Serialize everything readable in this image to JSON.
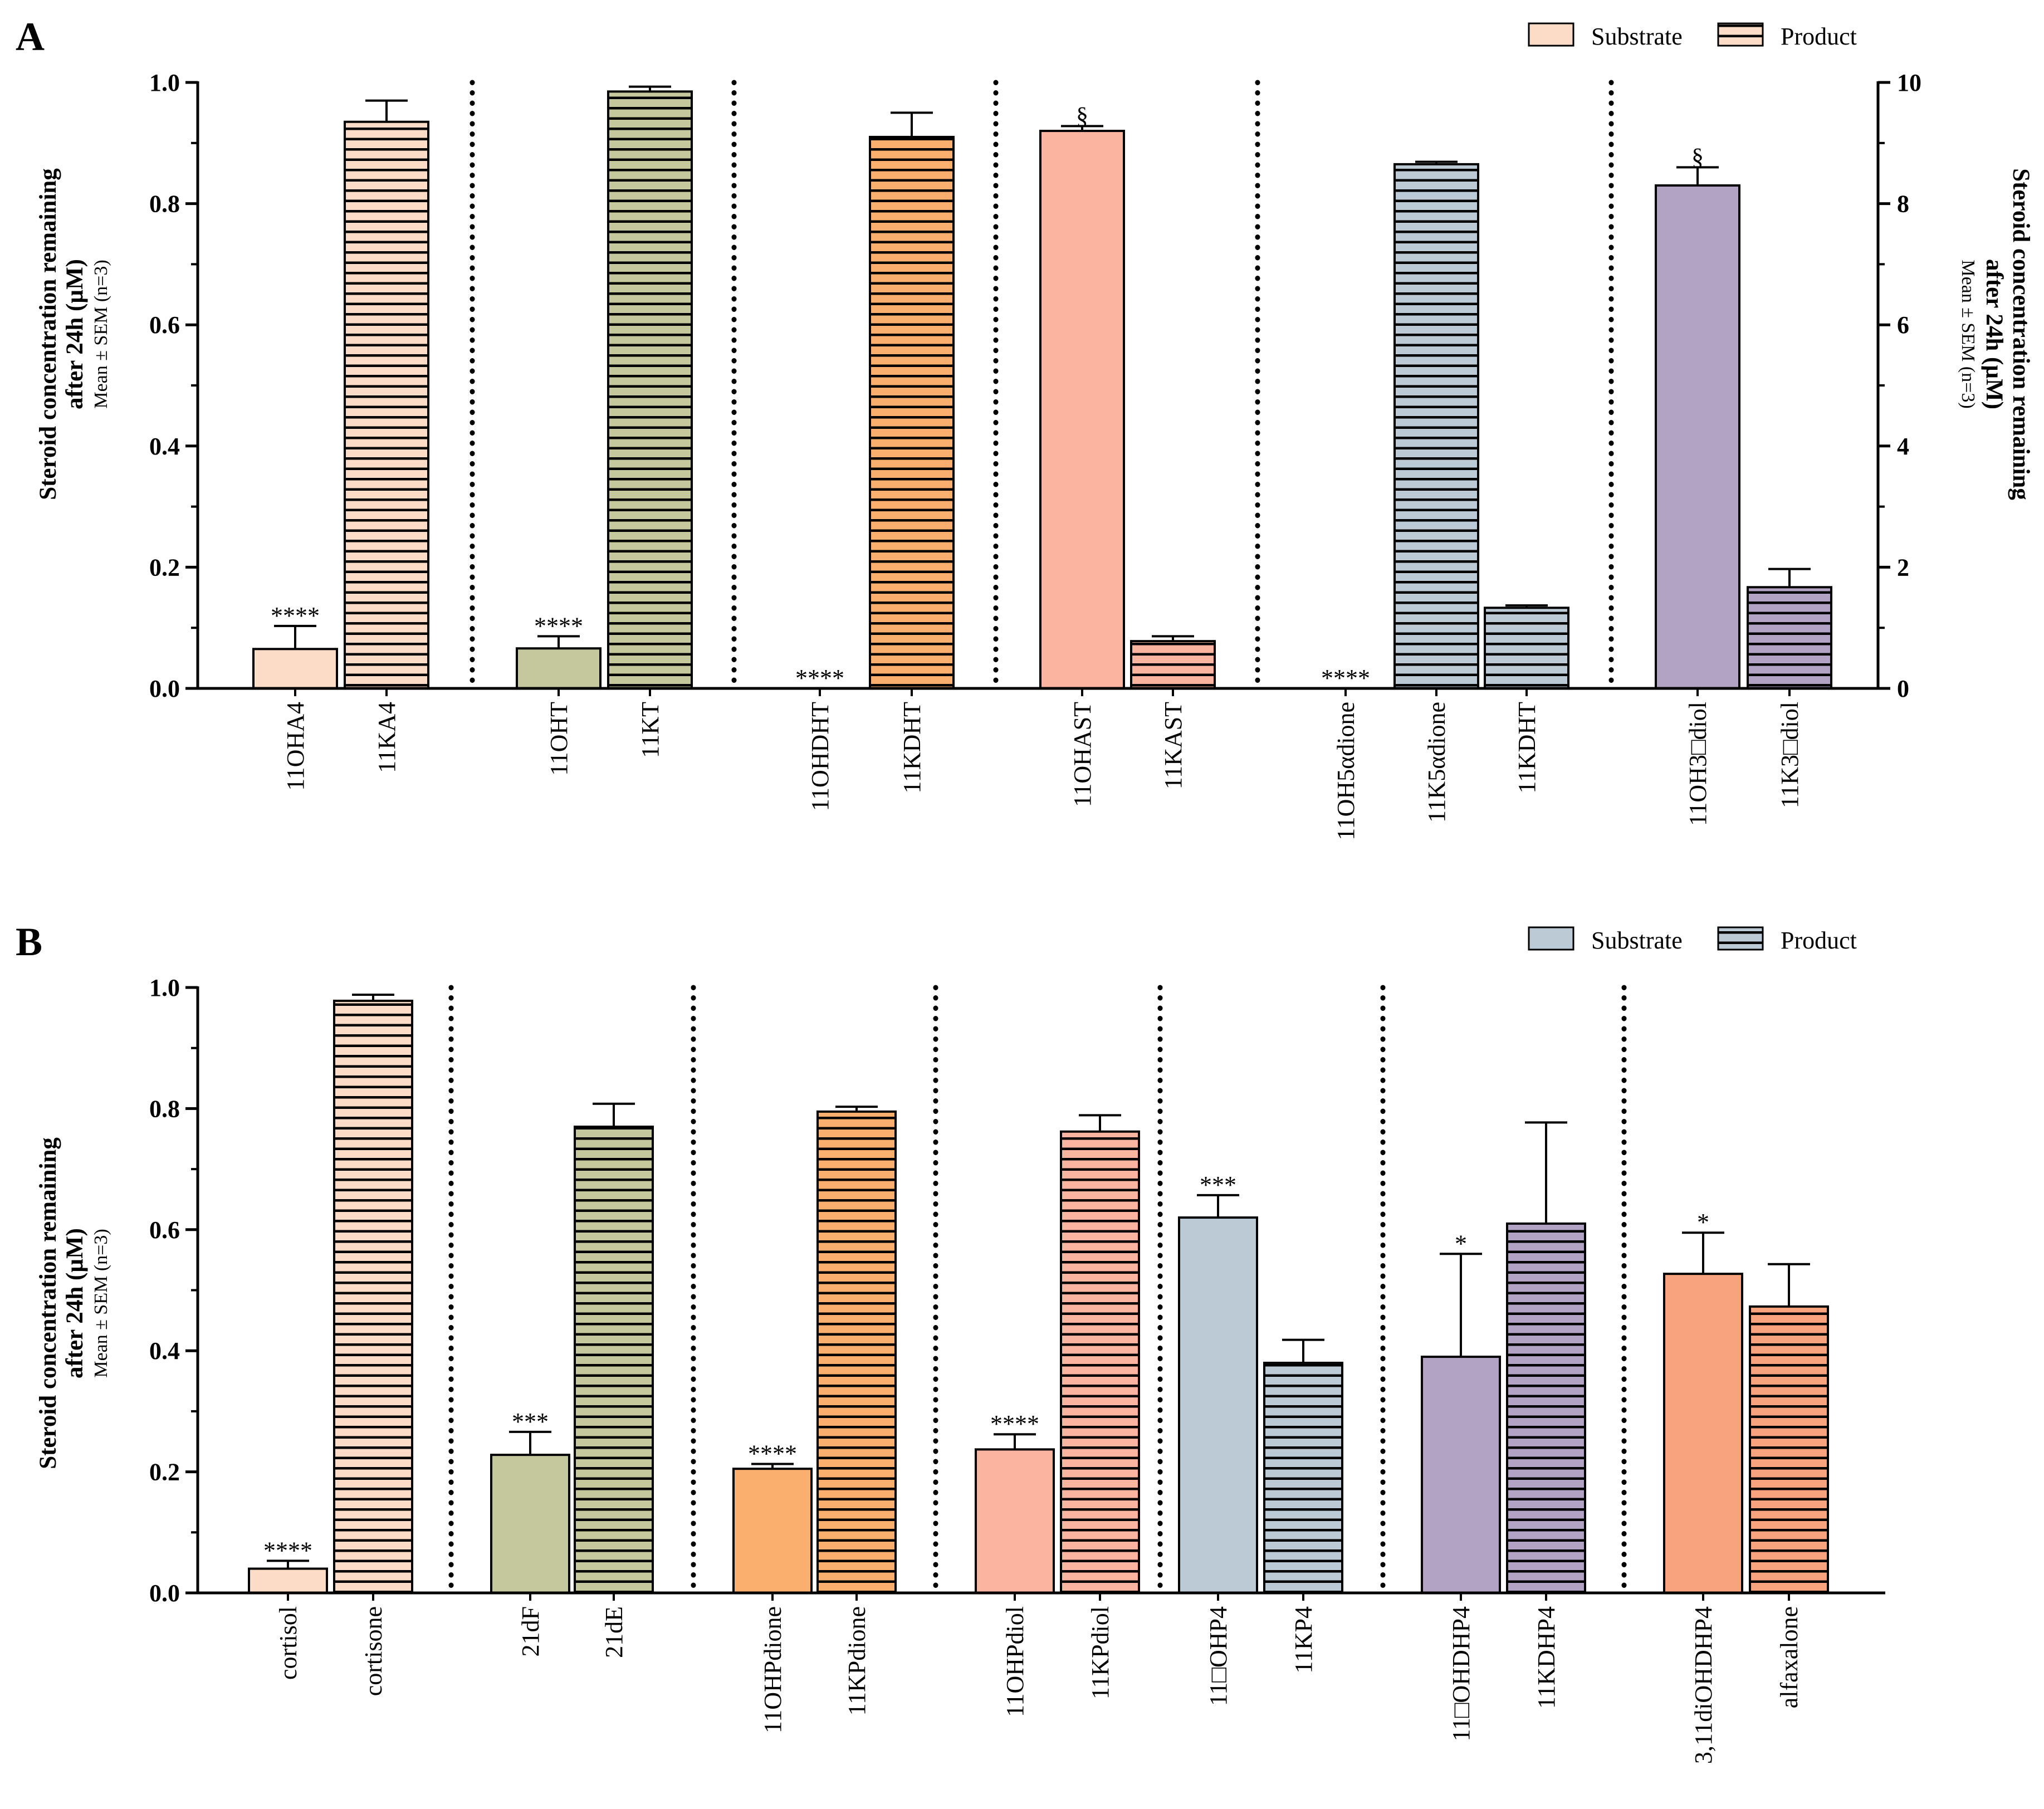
{
  "figure": {
    "panels": [
      {
        "label": "A",
        "legend": {
          "substrate": "Substrate",
          "product": "Product"
        },
        "ylabel": {
          "line1": "Steroid concentration remaining",
          "line2": "after 24h (µM)",
          "line3": "Mean ± SEM (n=3)"
        },
        "right_ylabel": {
          "line1": "Steroid concentration remaining",
          "line2": "after 24h (µM)",
          "line3": "Mean ± SEM (n=3)"
        }
      },
      {
        "label": "B",
        "legend": {
          "substrate": "Substrate",
          "product": "Product"
        },
        "ylabel": {
          "line1": "Steroid concentration remaining",
          "line2": "after 24h (µM)",
          "line3": "Mean ± SEM (n=3)"
        }
      }
    ]
  },
  "chart_data": [
    {
      "type": "bar",
      "panel": "A",
      "ylim": [
        0,
        1.0
      ],
      "yticks": [
        "0.0",
        "0.2",
        "0.4",
        "0.6",
        "0.8",
        "1.0"
      ],
      "y2lim": [
        0,
        10
      ],
      "y2ticks": [
        "0",
        "2",
        "4",
        "6",
        "8",
        "10"
      ],
      "legend_position": "top-right",
      "grid": false,
      "groups": [
        {
          "bars": [
            {
              "label": "11OHA4",
              "kind": "substrate",
              "value": 0.065,
              "err": 0.038,
              "color": "#FDDCC7",
              "annotation": "****"
            },
            {
              "label": "11KA4",
              "kind": "product",
              "value": 0.935,
              "err": 0.035,
              "color": "#FDDCC7",
              "annotation": ""
            }
          ]
        },
        {
          "bars": [
            {
              "label": "11OHT",
              "kind": "substrate",
              "value": 0.066,
              "err": 0.02,
              "color": "#C4C89C",
              "annotation": "****"
            },
            {
              "label": "11KT",
              "kind": "product",
              "value": 0.985,
              "err": 0.008,
              "color": "#C4C89C",
              "annotation": ""
            }
          ]
        },
        {
          "bars": [
            {
              "label": "11OHDHT",
              "kind": "substrate",
              "value": 0.0,
              "err": 0.0,
              "color": "#FBAF6E",
              "annotation": "****"
            },
            {
              "label": "11KDHT",
              "kind": "product",
              "value": 0.91,
              "err": 0.04,
              "color": "#FBAF6E",
              "annotation": ""
            }
          ]
        },
        {
          "bars": [
            {
              "label": "11OHAST",
              "kind": "substrate",
              "value": 0.92,
              "err": 0.008,
              "color": "#FBB4A0",
              "annotation": "§"
            },
            {
              "label": "11KAST",
              "kind": "product",
              "value": 0.078,
              "err": 0.008,
              "color": "#FBB4A0",
              "annotation": ""
            }
          ]
        },
        {
          "bars": [
            {
              "label": "11OH5αdione",
              "kind": "substrate",
              "value": 0.0,
              "err": 0.0,
              "color": "#BCCAD6",
              "annotation": "****",
              "axis": "right"
            },
            {
              "label": "11K5αdione",
              "kind": "product",
              "value": 8.65,
              "err": 0.04,
              "color": "#BCCAD6",
              "annotation": "",
              "axis": "right"
            },
            {
              "label": "11KDHT",
              "kind": "product",
              "value": 1.33,
              "err": 0.04,
              "color": "#BCCAD6",
              "annotation": "",
              "axis": "right"
            }
          ]
        },
        {
          "bars": [
            {
              "label": "11OH3□diol",
              "kind": "substrate",
              "value": 8.3,
              "err": 0.3,
              "color": "#B2A3C4",
              "annotation": "§",
              "axis": "right"
            },
            {
              "label": "11K3□diol",
              "kind": "product",
              "value": 1.67,
              "err": 0.3,
              "color": "#B2A3C4",
              "annotation": "",
              "axis": "right"
            }
          ]
        }
      ]
    },
    {
      "type": "bar",
      "panel": "B",
      "ylim": [
        0,
        1.0
      ],
      "yticks": [
        "0.0",
        "0.2",
        "0.4",
        "0.6",
        "0.8",
        "1.0"
      ],
      "legend_position": "top-right",
      "grid": false,
      "groups": [
        {
          "bars": [
            {
              "label": "cortisol",
              "kind": "substrate",
              "value": 0.04,
              "err": 0.013,
              "color": "#FDDCC7",
              "annotation": "****"
            },
            {
              "label": "cortisone",
              "kind": "product",
              "value": 0.978,
              "err": 0.01,
              "color": "#FDDCC7",
              "annotation": ""
            }
          ]
        },
        {
          "bars": [
            {
              "label": "21dF",
              "kind": "substrate",
              "value": 0.228,
              "err": 0.038,
              "color": "#C4C89C",
              "annotation": "***"
            },
            {
              "label": "21dE",
              "kind": "product",
              "value": 0.77,
              "err": 0.038,
              "color": "#C4C89C",
              "annotation": ""
            }
          ]
        },
        {
          "bars": [
            {
              "label": "11OHPdione",
              "kind": "substrate",
              "value": 0.205,
              "err": 0.008,
              "color": "#FBAF6E",
              "annotation": "****"
            },
            {
              "label": "11KPdione",
              "kind": "product",
              "value": 0.795,
              "err": 0.008,
              "color": "#FBAF6E",
              "annotation": ""
            }
          ]
        },
        {
          "bars": [
            {
              "label": "11OHPdiol",
              "kind": "substrate",
              "value": 0.237,
              "err": 0.025,
              "color": "#FBB4A0",
              "annotation": "****"
            },
            {
              "label": "11KPdiol",
              "kind": "product",
              "value": 0.762,
              "err": 0.027,
              "color": "#FBB4A0",
              "annotation": ""
            }
          ]
        },
        {
          "bars": [
            {
              "label": "11□OHP4",
              "kind": "substrate",
              "value": 0.62,
              "err": 0.037,
              "color": "#BCCAD6",
              "annotation": "***"
            },
            {
              "label": "11KP4",
              "kind": "product",
              "value": 0.38,
              "err": 0.038,
              "color": "#BCCAD6",
              "annotation": ""
            }
          ]
        },
        {
          "bars": [
            {
              "label": "11□OHDHP4",
              "kind": "substrate",
              "value": 0.39,
              "err": 0.17,
              "color": "#B2A3C4",
              "annotation": "*"
            },
            {
              "label": "11KDHP4",
              "kind": "product",
              "value": 0.61,
              "err": 0.167,
              "color": "#B2A3C4",
              "annotation": ""
            }
          ]
        },
        {
          "bars": [
            {
              "label": "3,11diOHDHP4",
              "kind": "substrate",
              "value": 0.527,
              "err": 0.068,
              "color": "#F8A27E",
              "annotation": "*"
            },
            {
              "label": "alfaxalone",
              "kind": "product",
              "value": 0.473,
              "err": 0.07,
              "color": "#F8A27E",
              "annotation": ""
            }
          ]
        }
      ]
    }
  ]
}
